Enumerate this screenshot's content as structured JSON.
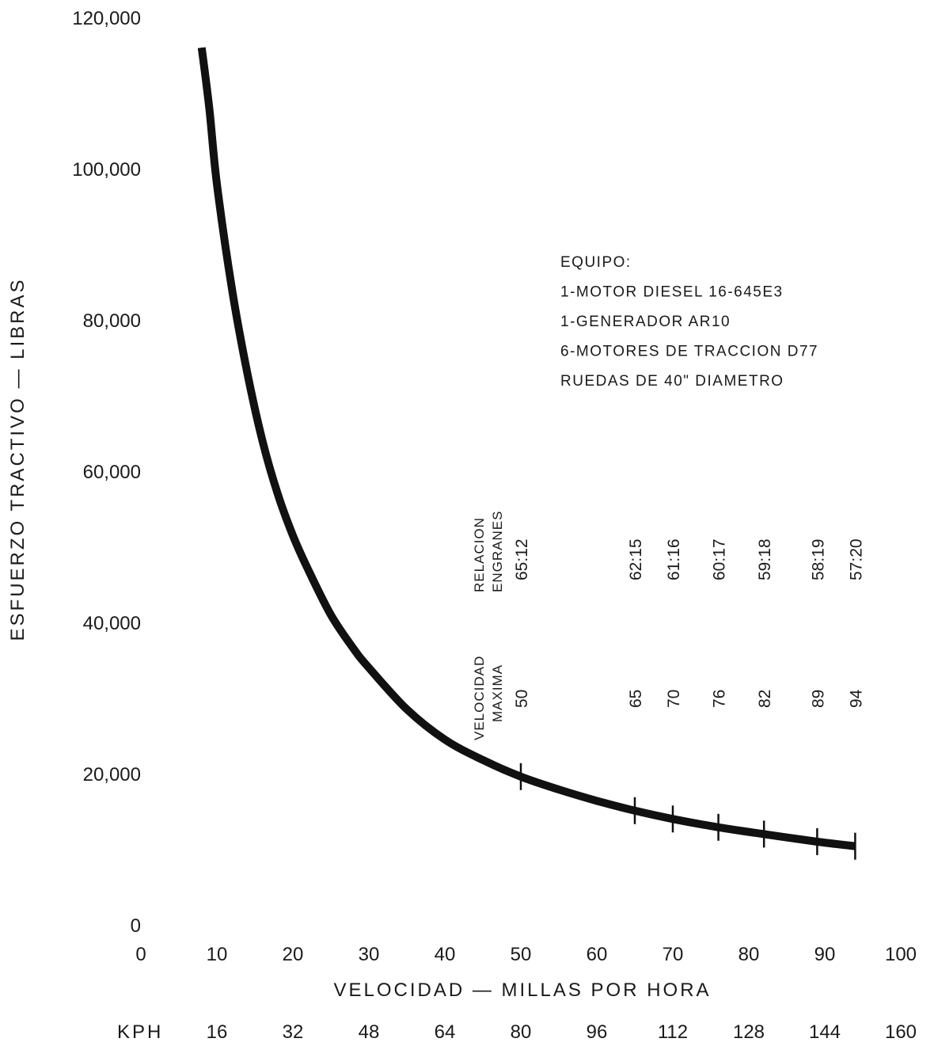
{
  "chart_data": {
    "type": "line",
    "xlabel": "VELOCIDAD — MILLAS POR HORA",
    "ylabel": "ESFUERZO TRACTIVO — LIBRAS",
    "xlim": [
      0,
      100
    ],
    "ylim": [
      0,
      120000
    ],
    "x_ticks": [
      "0",
      "10",
      "20",
      "30",
      "40",
      "50",
      "60",
      "70",
      "80",
      "90",
      "100"
    ],
    "y_ticks": [
      "0",
      "20,000",
      "40,000",
      "60,000",
      "80,000",
      "100,000",
      "120,000"
    ],
    "secondary_x_label": "KPH",
    "secondary_x_ticks": [
      "16",
      "32",
      "48",
      "64",
      "80",
      "96",
      "112",
      "128",
      "144",
      "160"
    ],
    "grid": false,
    "series": [
      {
        "x": [
          8,
          9,
          10,
          12,
          14,
          16,
          18,
          20,
          22,
          25,
          28,
          30,
          35,
          40,
          45,
          50,
          55,
          60,
          65,
          70,
          76,
          82,
          89,
          94
        ],
        "y": [
          116000,
          108000,
          98000,
          84000,
          73000,
          64000,
          57000,
          51500,
          47000,
          41000,
          36500,
          34000,
          28500,
          24500,
          21800,
          19600,
          17900,
          16400,
          15100,
          14000,
          12900,
          12000,
          11000,
          10400
        ]
      }
    ],
    "gear_marks": [
      {
        "speed": 50,
        "ratio": "65:12",
        "speed_label": "50"
      },
      {
        "speed": 65,
        "ratio": "62:15",
        "speed_label": "65"
      },
      {
        "speed": 70,
        "ratio": "61:16",
        "speed_label": "70"
      },
      {
        "speed": 76,
        "ratio": "60:17",
        "speed_label": "76"
      },
      {
        "speed": 82,
        "ratio": "59:18",
        "speed_label": "82"
      },
      {
        "speed": 89,
        "ratio": "58:19",
        "speed_label": "89"
      },
      {
        "speed": 94,
        "ratio": "57:20",
        "speed_label": "94"
      }
    ],
    "gear_header": {
      "ratio_line1": "RELACION",
      "ratio_line2": "ENGRANES",
      "speed_line1": "VELOCIDAD",
      "speed_line2": "MAXIMA"
    },
    "annotations": [
      "EQUIPO:",
      "1-MOTOR DIESEL 16-645E3",
      "1-GENERADOR AR10",
      "6-MOTORES DE TRACCION D77",
      "RUEDAS DE 40\" DIAMETRO"
    ]
  }
}
